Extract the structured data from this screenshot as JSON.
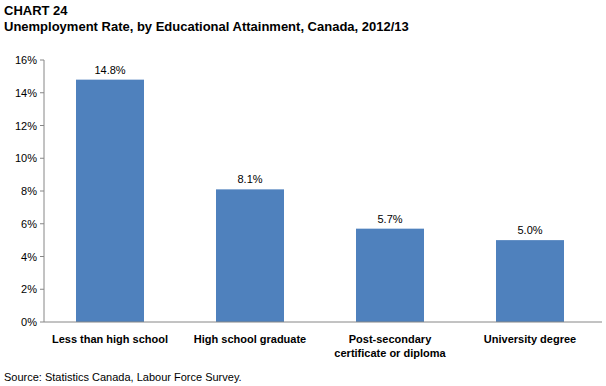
{
  "chart_data": {
    "type": "bar",
    "title": "CHART 24",
    "subtitle": "Unemployment Rate, by Educational Attainment, Canada, 2012/13",
    "source": "Source: Statistics Canada, Labour Force Survey.",
    "categories": [
      "Less than high school",
      "High school graduate",
      "Post-secondary\ncertificate or diploma",
      "University degree"
    ],
    "values": [
      14.8,
      8.1,
      5.7,
      5.0
    ],
    "value_labels": [
      "14.8%",
      "8.1%",
      "5.7%",
      "5.0%"
    ],
    "color": "#4f81bd",
    "ylim": [
      0,
      16
    ],
    "yticks": [
      {
        "value": 0,
        "label": "0%"
      },
      {
        "value": 2,
        "label": "2%"
      },
      {
        "value": 4,
        "label": "4%"
      },
      {
        "value": 6,
        "label": "6%"
      },
      {
        "value": 8,
        "label": "8%"
      },
      {
        "value": 10,
        "label": "10%"
      },
      {
        "value": 12,
        "label": "12%"
      },
      {
        "value": 14,
        "label": "14%"
      },
      {
        "value": 16,
        "label": "16%"
      }
    ],
    "grid": false,
    "data_labels": true
  }
}
